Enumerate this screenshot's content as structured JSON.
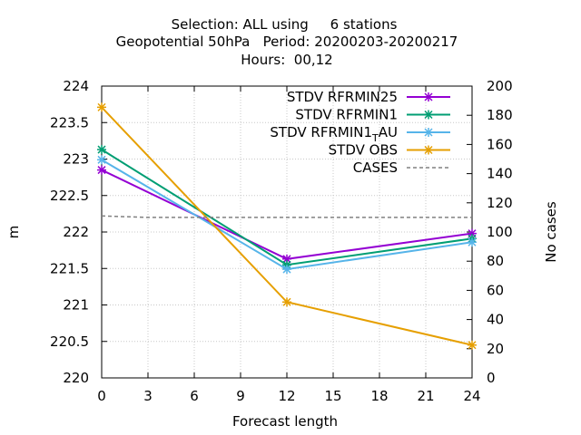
{
  "title_lines": [
    "Selection: ALL using     6 stations",
    "Geopotential 50hPa   Period: 20200203-20200217",
    "Hours:  00,12"
  ],
  "chart_data": {
    "type": "line",
    "xlabel": "Forecast length",
    "ylabel": "m",
    "y2label": "No cases",
    "xlim": [
      0,
      24
    ],
    "ylim": [
      220,
      224
    ],
    "y2lim": [
      0,
      200
    ],
    "xticks": [
      "0",
      "3",
      "6",
      "9",
      "12",
      "15",
      "18",
      "21",
      "24"
    ],
    "yticks": [
      "220",
      "220.5",
      "221",
      "221.5",
      "222",
      "222.5",
      "223",
      "223.5",
      "224"
    ],
    "y2ticks": [
      "0",
      "20",
      "40",
      "60",
      "80",
      "100",
      "120",
      "140",
      "160",
      "180",
      "200"
    ],
    "grid": true,
    "legend_position": "top-right",
    "series": [
      {
        "name": "STDV RFRMIN25",
        "axis": "y",
        "color": "#9400d3",
        "marker": "x",
        "x": [
          0,
          12,
          24
        ],
        "values": [
          222.85,
          221.63,
          221.98
        ]
      },
      {
        "name": "STDV RFRMIN1",
        "axis": "y",
        "color": "#009e73",
        "marker": "x",
        "x": [
          0,
          12,
          24
        ],
        "values": [
          223.13,
          221.55,
          221.91
        ]
      },
      {
        "name": "STDV RFRMIN1",
        "name_subscript": "T",
        "name_suffix": "AU",
        "axis": "y",
        "color": "#56b4e9",
        "marker": "x",
        "x": [
          0,
          12,
          24
        ],
        "values": [
          222.99,
          221.49,
          221.86
        ]
      },
      {
        "name": "STDV OBS",
        "axis": "y",
        "color": "#e69f00",
        "marker": "x",
        "x": [
          0,
          12,
          24
        ],
        "values": [
          223.71,
          221.04,
          220.45
        ]
      },
      {
        "name": "CASES",
        "axis": "y2",
        "color": "#808080",
        "dashed": true,
        "x": [
          0,
          3,
          6,
          9,
          12,
          15,
          18,
          21,
          24
        ],
        "values": [
          111,
          110,
          110,
          110,
          110,
          110,
          110,
          110,
          110
        ]
      }
    ]
  }
}
